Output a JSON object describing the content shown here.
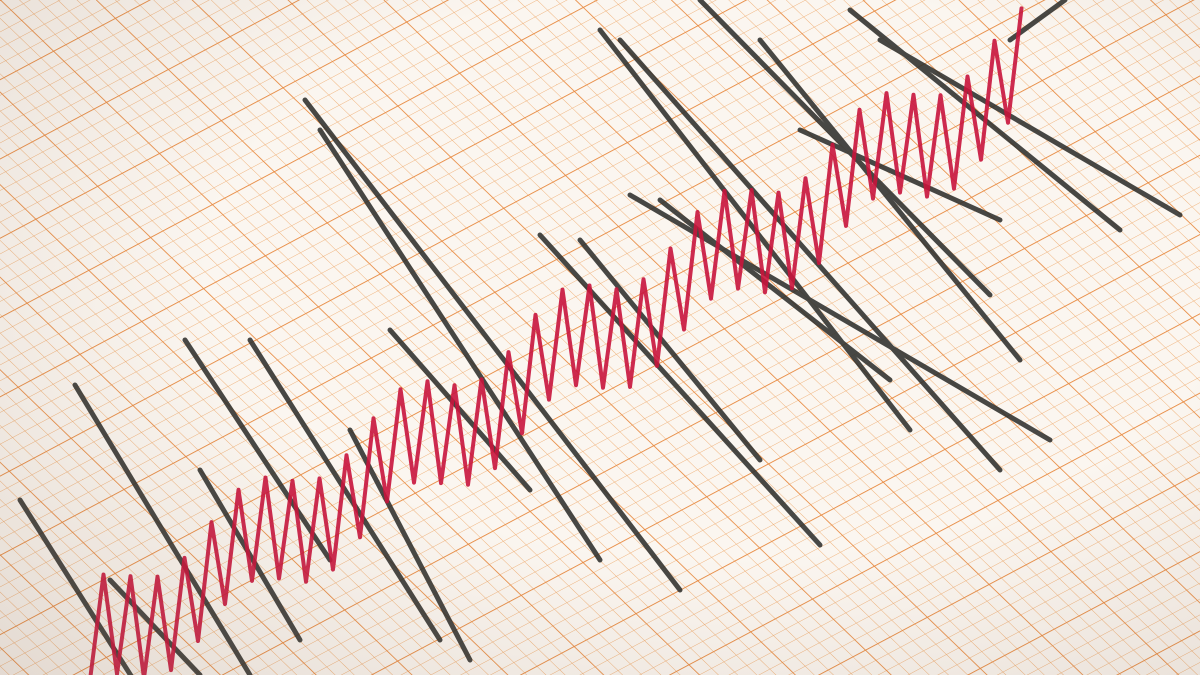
{
  "image": {
    "subject": "seismograph-trace",
    "colors": {
      "paper": "#fbf6f0",
      "grid_minor": "#f0b27a",
      "grid_major": "#e8893f",
      "trace_dark": "#2f302d",
      "trace_red": "#c8143c"
    }
  }
}
